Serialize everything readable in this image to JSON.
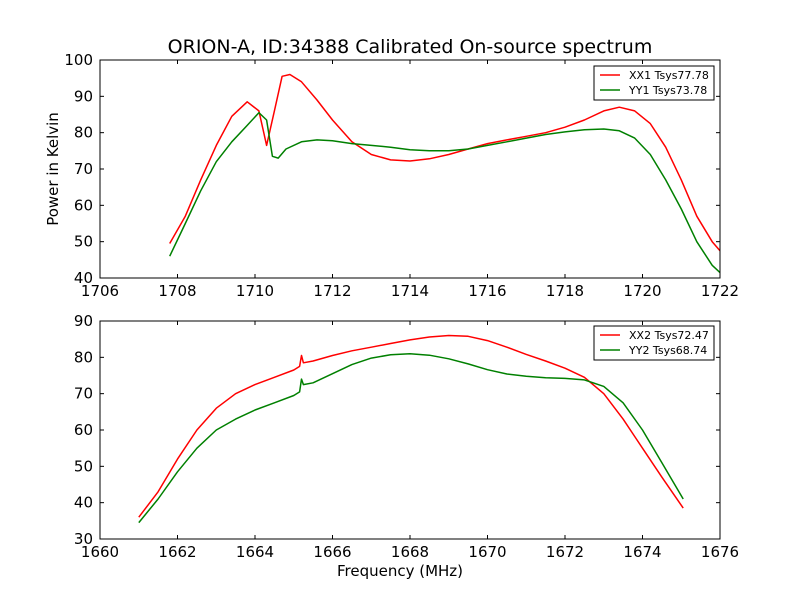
{
  "chart_data": [
    {
      "type": "line",
      "title": "ORION-A, ID:34388 Calibrated On-source spectrum",
      "xlabel": "",
      "ylabel": "Power in Kelvin",
      "xlim": [
        1706,
        1722
      ],
      "ylim": [
        40,
        100
      ],
      "xticks": [
        "1706",
        "1708",
        "1710",
        "1712",
        "1714",
        "1716",
        "1718",
        "1720",
        "1722"
      ],
      "yticks": [
        "40",
        "50",
        "60",
        "70",
        "80",
        "90",
        "100"
      ],
      "legend_position": "top-right",
      "grid": false,
      "series": [
        {
          "name": "XX1 Tsys77.78",
          "color": "#ff0000",
          "x": [
            1707.8,
            1708.2,
            1708.6,
            1709.0,
            1709.4,
            1709.8,
            1710.1,
            1710.3,
            1710.5,
            1710.7,
            1710.9,
            1711.2,
            1711.6,
            1712.0,
            1712.5,
            1713.0,
            1713.5,
            1714.0,
            1714.5,
            1715.0,
            1715.5,
            1716.0,
            1716.5,
            1717.0,
            1717.5,
            1718.0,
            1718.5,
            1719.0,
            1719.4,
            1719.8,
            1720.2,
            1720.6,
            1721.0,
            1721.4,
            1721.8,
            1722.0
          ],
          "values": [
            49.5,
            57,
            67,
            76.5,
            84.5,
            88.5,
            86,
            76.5,
            86,
            95.5,
            96,
            94,
            89,
            83.5,
            77.5,
            74,
            72.5,
            72.2,
            72.8,
            74,
            75.5,
            77,
            78,
            79,
            80,
            81.5,
            83.5,
            86,
            87,
            86,
            82.5,
            76,
            67,
            57,
            50,
            47.5
          ]
        },
        {
          "name": "YY1 Tsys73.78",
          "color": "#008000",
          "x": [
            1707.8,
            1708.2,
            1708.6,
            1709.0,
            1709.4,
            1709.8,
            1710.1,
            1710.3,
            1710.45,
            1710.6,
            1710.8,
            1711.2,
            1711.6,
            1712.0,
            1712.5,
            1713.0,
            1713.5,
            1714.0,
            1714.5,
            1715.0,
            1715.5,
            1716.0,
            1716.5,
            1717.0,
            1717.5,
            1718.0,
            1718.5,
            1719.0,
            1719.4,
            1719.8,
            1720.2,
            1720.6,
            1721.0,
            1721.4,
            1721.8,
            1722.0
          ],
          "values": [
            46,
            55,
            64,
            72,
            77.5,
            82,
            85.5,
            83.5,
            73.5,
            73,
            75.5,
            77.5,
            78,
            77.8,
            77,
            76.5,
            76,
            75.3,
            75,
            75,
            75.5,
            76.5,
            77.5,
            78.5,
            79.5,
            80.2,
            80.8,
            81,
            80.5,
            78.5,
            74,
            67,
            59,
            50,
            43.5,
            41.5
          ]
        }
      ]
    },
    {
      "type": "line",
      "title": "",
      "xlabel": "Frequency (MHz)",
      "ylabel": "",
      "xlim": [
        1660,
        1676
      ],
      "ylim": [
        30,
        90
      ],
      "xticks": [
        "1660",
        "1662",
        "1664",
        "1666",
        "1668",
        "1670",
        "1672",
        "1674",
        "1676"
      ],
      "yticks": [
        "30",
        "40",
        "50",
        "60",
        "70",
        "80",
        "90"
      ],
      "legend_position": "top-right",
      "grid": false,
      "series": [
        {
          "name": "XX2 Tsys72.47",
          "color": "#ff0000",
          "x": [
            1661.0,
            1661.5,
            1662.0,
            1662.5,
            1663.0,
            1663.5,
            1664.0,
            1664.5,
            1665.0,
            1665.15,
            1665.2,
            1665.25,
            1665.5,
            1666.0,
            1666.5,
            1667.0,
            1667.5,
            1668.0,
            1668.5,
            1669.0,
            1669.5,
            1670.0,
            1670.5,
            1671.0,
            1671.5,
            1672.0,
            1672.5,
            1673.0,
            1673.5,
            1674.0,
            1674.5,
            1675.05
          ],
          "values": [
            36,
            43,
            52,
            60,
            66,
            70,
            72.5,
            74.5,
            76.5,
            77.5,
            80.5,
            78.5,
            79,
            80.5,
            81.8,
            82.8,
            83.8,
            84.8,
            85.6,
            86,
            85.8,
            84.6,
            82.8,
            80.8,
            79,
            77,
            74.5,
            70,
            63,
            55,
            47,
            38.5
          ]
        },
        {
          "name": "YY2 Tsys68.74",
          "color": "#008000",
          "x": [
            1661.0,
            1661.5,
            1662.0,
            1662.5,
            1663.0,
            1663.5,
            1664.0,
            1664.5,
            1665.0,
            1665.15,
            1665.2,
            1665.25,
            1665.5,
            1666.0,
            1666.5,
            1667.0,
            1667.5,
            1668.0,
            1668.5,
            1669.0,
            1669.5,
            1670.0,
            1670.5,
            1671.0,
            1671.5,
            1672.0,
            1672.5,
            1673.0,
            1673.5,
            1674.0,
            1674.5,
            1675.05
          ],
          "values": [
            34.5,
            41,
            48.5,
            55,
            60,
            63,
            65.5,
            67.5,
            69.5,
            70.5,
            74,
            72.5,
            73,
            75.5,
            78,
            79.8,
            80.7,
            81,
            80.6,
            79.6,
            78.2,
            76.6,
            75.4,
            74.8,
            74.4,
            74.2,
            73.8,
            72,
            67.5,
            60,
            51,
            41
          ]
        }
      ]
    }
  ]
}
